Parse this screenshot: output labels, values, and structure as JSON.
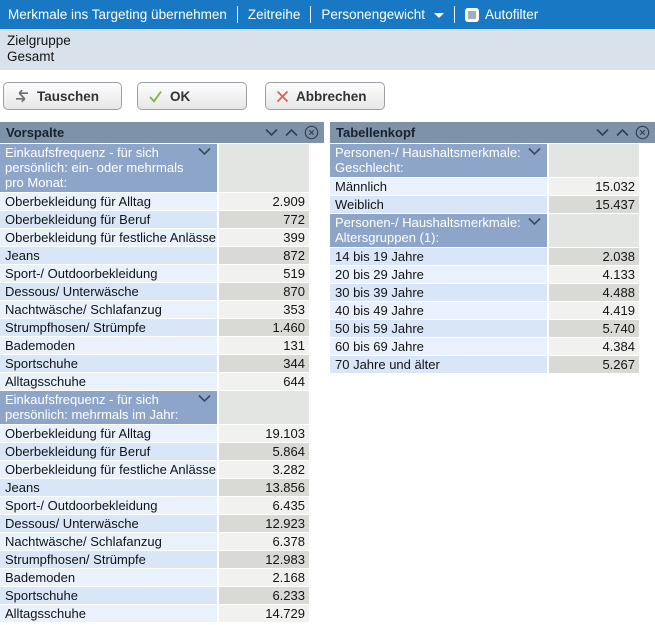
{
  "toolbar": {
    "items": [
      {
        "label": "Merkmale ins Targeting übernehmen",
        "name": "merkmale-uebernehmen"
      },
      {
        "label": "Zeitreihe",
        "name": "zeitreihe"
      },
      {
        "label": "Personengewicht",
        "name": "personengewicht",
        "dropdown": true
      },
      {
        "label": "Autofilter",
        "name": "autofilter",
        "checkbox": true
      }
    ]
  },
  "target_group": {
    "label": "Zielgruppe",
    "value": "Gesamt"
  },
  "buttons": [
    {
      "label": "Tauschen"
    },
    {
      "label": "OK"
    },
    {
      "label": "Abbrechen"
    }
  ],
  "panels": [
    {
      "title": "Vorspalte",
      "name": "vorspalte",
      "sections": [
        {
          "header": "Einkaufsfrequenz - für sich persönlich: ein- oder mehrmals pro Monat:",
          "rows": [
            {
              "label": "Oberbekleidung für Alltag",
              "value": "2.909"
            },
            {
              "label": "Oberbekleidung für Beruf",
              "value": "772"
            },
            {
              "label": "Oberbekleidung für festliche Anlässe",
              "value": "399"
            },
            {
              "label": "Jeans",
              "value": "872"
            },
            {
              "label": "Sport-/ Outdoorbekleidung",
              "value": "519"
            },
            {
              "label": "Dessous/ Unterwäsche",
              "value": "870"
            },
            {
              "label": "Nachtwäsche/ Schlafanzug",
              "value": "353"
            },
            {
              "label": "Strumpfhosen/ Strümpfe",
              "value": "1.460"
            },
            {
              "label": "Bademoden",
              "value": "131"
            },
            {
              "label": "Sportschuhe",
              "value": "344"
            },
            {
              "label": "Alltagsschuhe",
              "value": "644"
            }
          ]
        },
        {
          "header": "Einkaufsfrequenz - für sich persönlich: mehrmals im Jahr:",
          "rows": [
            {
              "label": "Oberbekleidung für Alltag",
              "value": "19.103"
            },
            {
              "label": "Oberbekleidung für Beruf",
              "value": "5.864"
            },
            {
              "label": "Oberbekleidung für festliche Anlässe",
              "value": "3.282"
            },
            {
              "label": "Jeans",
              "value": "13.856"
            },
            {
              "label": "Sport-/ Outdoorbekleidung",
              "value": "6.435"
            },
            {
              "label": "Dessous/ Unterwäsche",
              "value": "12.923"
            },
            {
              "label": "Nachtwäsche/ Schlafanzug",
              "value": "6.378"
            },
            {
              "label": "Strumpfhosen/ Strümpfe",
              "value": "12.983"
            },
            {
              "label": "Bademoden",
              "value": "2.168"
            },
            {
              "label": "Sportschuhe",
              "value": "6.233"
            },
            {
              "label": "Alltagsschuhe",
              "value": "14.729"
            }
          ]
        }
      ]
    },
    {
      "title": "Tabellenkopf",
      "name": "tabellenkopf",
      "sections": [
        {
          "header": "Personen-/ Haushaltsmerkmale: Geschlecht:",
          "rows": [
            {
              "label": "Männlich",
              "value": "15.032"
            },
            {
              "label": "Weiblich",
              "value": "15.437"
            }
          ]
        },
        {
          "header": "Personen-/ Haushaltsmerkmale: Altersgruppen (1):",
          "rows": [
            {
              "label": "14 bis 19 Jahre",
              "value": "2.038"
            },
            {
              "label": "20 bis 29 Jahre",
              "value": "4.133"
            },
            {
              "label": "30 bis 39 Jahre",
              "value": "4.488"
            },
            {
              "label": "40 bis 49 Jahre",
              "value": "4.419"
            },
            {
              "label": "50 bis 59 Jahre",
              "value": "5.740"
            },
            {
              "label": "60 bis 69 Jahre",
              "value": "4.384"
            },
            {
              "label": "70 Jahre und älter",
              "value": "5.267"
            }
          ]
        }
      ]
    }
  ],
  "colors": {
    "toolbar_bg": "#1878c4",
    "target_bg": "#d9e2eb",
    "panel_titlebar_bg": "#7f93a8",
    "section_header_bg": "#8da5c8",
    "row_label_light": "#e8f1fc",
    "row_label_dark": "#d8e6f7",
    "row_value_light": "#f1f1ef",
    "row_value_dark": "#d9dad6",
    "ok_check_green": "#7ab648",
    "cancel_x_red": "#e2604e"
  }
}
